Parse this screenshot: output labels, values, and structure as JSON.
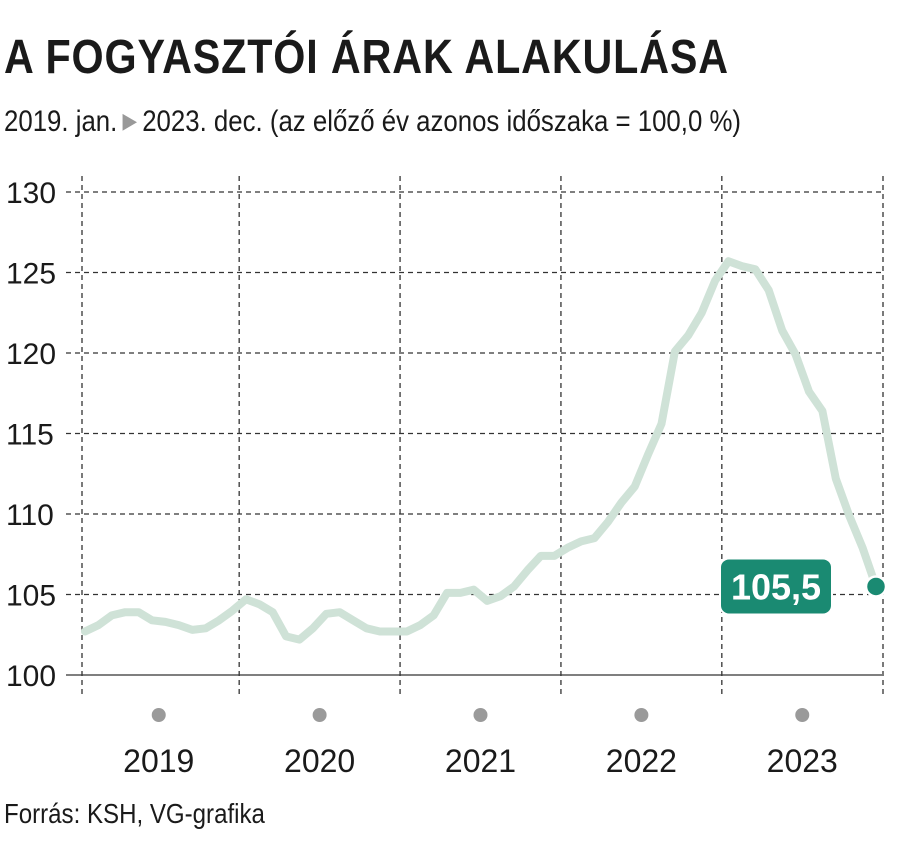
{
  "title": "A FOGYASZTÓI ÁRAK ALAKULÁSA",
  "subtitle": {
    "start": "2019. jan.",
    "end": "2023. dec. (az előző év azonos időszaka = 100,0 %)"
  },
  "source": "Forrás: KSH, VG-grafika",
  "colors": {
    "line": "#cfe2d7",
    "accent": "#1a8a72",
    "grid": "#333333",
    "year_dot": "#9a9a9a"
  },
  "chart_data": {
    "type": "line",
    "x_range": [
      "2019-01",
      "2023-12"
    ],
    "ylim": [
      100,
      130
    ],
    "yticks": [
      100,
      105,
      110,
      115,
      120,
      125,
      130
    ],
    "xlabels": [
      "2019",
      "2020",
      "2021",
      "2022",
      "2023"
    ],
    "grid": true,
    "series": [
      {
        "values": [
          102.7,
          103.1,
          103.7,
          103.9,
          103.9,
          103.4,
          103.3,
          103.1,
          102.8,
          102.9,
          103.4,
          104.0,
          104.7,
          104.4,
          103.9,
          102.4,
          102.2,
          102.9,
          103.8,
          103.9,
          103.4,
          102.9,
          102.7,
          102.7,
          102.7,
          103.1,
          103.7,
          105.1,
          105.1,
          105.3,
          104.6,
          104.9,
          105.5,
          106.5,
          107.4,
          107.4,
          107.9,
          108.3,
          108.5,
          109.5,
          110.7,
          111.7,
          113.7,
          115.6,
          120.1,
          121.1,
          122.5,
          124.5,
          125.7,
          125.4,
          125.2,
          123.9,
          121.4,
          119.9,
          117.6,
          116.4,
          112.2,
          109.9,
          107.9,
          105.5
        ]
      }
    ],
    "last_value_label": "105,5"
  }
}
